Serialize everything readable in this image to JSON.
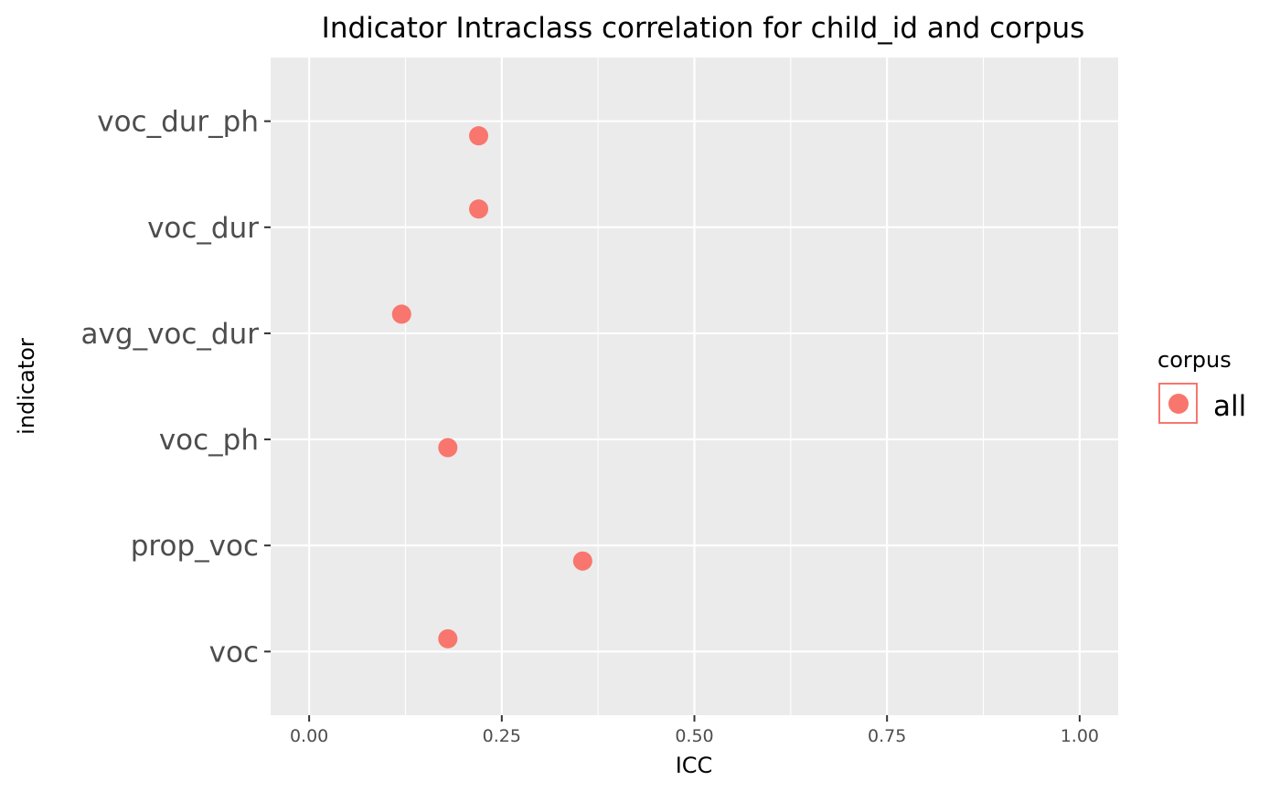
{
  "chart_data": {
    "type": "scatter",
    "title": "Indicator Intraclass correlation for child_id and corpus",
    "xlabel": "ICC",
    "ylabel": "indicator",
    "xlim": [
      -0.05,
      1.05
    ],
    "x_ticks": [
      "0.00",
      "0.25",
      "0.50",
      "0.75",
      "1.00"
    ],
    "categories": [
      "voc",
      "prop_voc",
      "voc_ph",
      "avg_voc_dur",
      "voc_dur",
      "voc_dur_ph"
    ],
    "grid": true,
    "legend": {
      "title": "corpus",
      "placement": "right"
    },
    "series": [
      {
        "name": "all",
        "color": "#F8766D",
        "points": [
          {
            "category": "voc",
            "x": 0.18
          },
          {
            "category": "prop_voc",
            "x": 0.355
          },
          {
            "category": "voc_ph",
            "x": 0.18
          },
          {
            "category": "avg_voc_dur",
            "x": 0.12
          },
          {
            "category": "voc_dur",
            "x": 0.22
          },
          {
            "category": "voc_dur_ph",
            "x": 0.22
          }
        ]
      }
    ]
  }
}
